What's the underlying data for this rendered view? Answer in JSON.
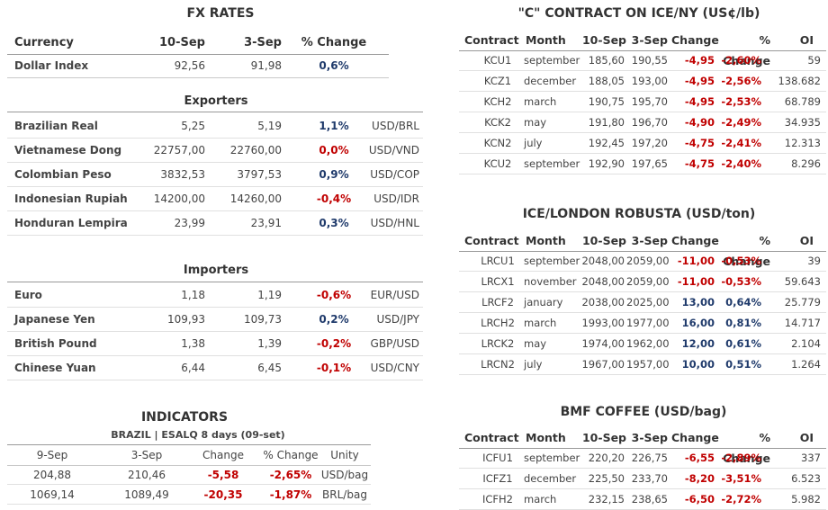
{
  "fx": {
    "title": "FX RATES",
    "headers": [
      "Currency",
      "10-Sep",
      "3-Sep",
      "% Change"
    ],
    "dollar": {
      "name": "Dollar Index",
      "v1": "92,56",
      "v2": "91,98",
      "chg": "0,6%",
      "dir": "up"
    },
    "exporters_title": "Exporters",
    "exporters": [
      {
        "name": "Brazilian Real",
        "v1": "5,25",
        "v2": "5,19",
        "chg": "1,1%",
        "dir": "up",
        "unit": "USD/BRL"
      },
      {
        "name": "Vietnamese Dong",
        "v1": "22757,00",
        "v2": "22760,00",
        "chg": "0,0%",
        "dir": "down",
        "unit": "USD/VND"
      },
      {
        "name": "Colombian Peso",
        "v1": "3832,53",
        "v2": "3797,53",
        "chg": "0,9%",
        "dir": "up",
        "unit": "USD/COP"
      },
      {
        "name": "Indonesian Rupiah",
        "v1": "14200,00",
        "v2": "14260,00",
        "chg": "-0,4%",
        "dir": "down",
        "unit": "USD/IDR"
      },
      {
        "name": "Honduran Lempira",
        "v1": "23,99",
        "v2": "23,91",
        "chg": "0,3%",
        "dir": "up",
        "unit": "USD/HNL"
      }
    ],
    "importers_title": "Importers",
    "importers": [
      {
        "name": "Euro",
        "v1": "1,18",
        "v2": "1,19",
        "chg": "-0,6%",
        "dir": "down",
        "unit": "EUR/USD"
      },
      {
        "name": "Japanese Yen",
        "v1": "109,93",
        "v2": "109,73",
        "chg": "0,2%",
        "dir": "up",
        "unit": "USD/JPY"
      },
      {
        "name": "British Pound",
        "v1": "1,38",
        "v2": "1,39",
        "chg": "-0,2%",
        "dir": "down",
        "unit": "GBP/USD"
      },
      {
        "name": "Chinese Yuan",
        "v1": "6,44",
        "v2": "6,45",
        "chg": "-0,1%",
        "dir": "down",
        "unit": "USD/CNY"
      }
    ]
  },
  "indicators": {
    "title": "INDICATORS",
    "subtitle": "BRAZIL | ESALQ 8 days (09-set)",
    "headers": [
      "9-Sep",
      "3-Sep",
      "Change",
      "% Change",
      "Unity"
    ],
    "rows": [
      {
        "a": "204,88",
        "b": "210,46",
        "chg": "-5,58",
        "pct": "-2,65%",
        "unit": "USD/bag"
      },
      {
        "a": "1069,14",
        "b": "1089,49",
        "chg": "-20,35",
        "pct": "-1,87%",
        "unit": "BRL/bag"
      }
    ]
  },
  "contract_headers": [
    "Contract",
    "Month",
    "10-Sep",
    "3-Sep",
    "Change",
    "% Change",
    "OI"
  ],
  "ice_ny": {
    "title": "\"C\" CONTRACT ON ICE/NY (US¢/lb)",
    "rows": [
      {
        "c": "KCU1",
        "m": "september",
        "v1": "185,60",
        "v2": "190,55",
        "chg": "-4,95",
        "pct": "-2,60%",
        "oi": "59",
        "dir": "down"
      },
      {
        "c": "KCZ1",
        "m": "december",
        "v1": "188,05",
        "v2": "193,00",
        "chg": "-4,95",
        "pct": "-2,56%",
        "oi": "138.682",
        "dir": "down"
      },
      {
        "c": "KCH2",
        "m": "march",
        "v1": "190,75",
        "v2": "195,70",
        "chg": "-4,95",
        "pct": "-2,53%",
        "oi": "68.789",
        "dir": "down"
      },
      {
        "c": "KCK2",
        "m": "may",
        "v1": "191,80",
        "v2": "196,70",
        "chg": "-4,90",
        "pct": "-2,49%",
        "oi": "34.935",
        "dir": "down"
      },
      {
        "c": "KCN2",
        "m": "july",
        "v1": "192,45",
        "v2": "197,20",
        "chg": "-4,75",
        "pct": "-2,41%",
        "oi": "12.313",
        "dir": "down"
      },
      {
        "c": "KCU2",
        "m": "september",
        "v1": "192,90",
        "v2": "197,65",
        "chg": "-4,75",
        "pct": "-2,40%",
        "oi": "8.296",
        "dir": "down"
      }
    ]
  },
  "ice_london": {
    "title": "ICE/LONDON ROBUSTA (USD/ton)",
    "rows": [
      {
        "c": "LRCU1",
        "m": "september",
        "v1": "2048,00",
        "v2": "2059,00",
        "chg": "-11,00",
        "pct": "-0,53%",
        "oi": "39",
        "dir": "down"
      },
      {
        "c": "LRCX1",
        "m": "november",
        "v1": "2048,00",
        "v2": "2059,00",
        "chg": "-11,00",
        "pct": "-0,53%",
        "oi": "59.643",
        "dir": "down"
      },
      {
        "c": "LRCF2",
        "m": "january",
        "v1": "2038,00",
        "v2": "2025,00",
        "chg": "13,00",
        "pct": "0,64%",
        "oi": "25.779",
        "dir": "up"
      },
      {
        "c": "LRCH2",
        "m": "march",
        "v1": "1993,00",
        "v2": "1977,00",
        "chg": "16,00",
        "pct": "0,81%",
        "oi": "14.717",
        "dir": "up"
      },
      {
        "c": "LRCK2",
        "m": "may",
        "v1": "1974,00",
        "v2": "1962,00",
        "chg": "12,00",
        "pct": "0,61%",
        "oi": "2.104",
        "dir": "up"
      },
      {
        "c": "LRCN2",
        "m": "july",
        "v1": "1967,00",
        "v2": "1957,00",
        "chg": "10,00",
        "pct": "0,51%",
        "oi": "1.264",
        "dir": "up"
      }
    ]
  },
  "bmf": {
    "title": "BMF COFFEE (USD/bag)",
    "rows": [
      {
        "c": "ICFU1",
        "m": "september",
        "v1": "220,20",
        "v2": "226,75",
        "chg": "-6,55",
        "pct": "-2,89%",
        "oi": "337",
        "dir": "down"
      },
      {
        "c": "ICFZ1",
        "m": "december",
        "v1": "225,50",
        "v2": "233,70",
        "chg": "-8,20",
        "pct": "-3,51%",
        "oi": "6.523",
        "dir": "down"
      },
      {
        "c": "ICFH2",
        "m": "march",
        "v1": "232,15",
        "v2": "238,65",
        "chg": "-6,50",
        "pct": "-2,72%",
        "oi": "5.982",
        "dir": "down"
      }
    ]
  },
  "colors": {
    "up": "#1f3a6b",
    "down": "#c00000"
  }
}
